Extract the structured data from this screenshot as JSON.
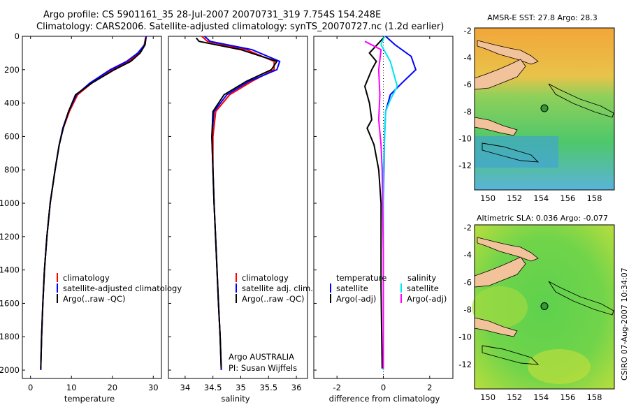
{
  "header": {
    "line1": "Argo profile: CS 5901161_35 28-Jul-2007 20070731_319 7.754S 154.248E",
    "line2": "Climatology: CARS2006. Satellite-adjusted climatology: synTS_20070727.nc (1.2d earlier)"
  },
  "footer": {
    "credit": "CSIRO 07-Aug-2007 10:34:07"
  },
  "colors": {
    "clim": "#ff0000",
    "sat": "#0000ff",
    "argo": "#000000",
    "sal_sat": "#00e5ee",
    "sal_argo": "#ff00ff",
    "mapmarker": "#339933"
  },
  "chart_data": [
    {
      "type": "line",
      "id": "temperature",
      "xlabel": "temperature",
      "ylabel": "",
      "xlim": [
        -2,
        32
      ],
      "ylim": [
        2050,
        0
      ],
      "xticks": [
        0,
        10,
        20,
        30
      ],
      "yticks": [
        0,
        200,
        400,
        600,
        800,
        1000,
        1200,
        1400,
        1600,
        1800,
        2000
      ],
      "series": [
        {
          "name": "climatology",
          "color": "#ff0000",
          "x": [
            28.2,
            27.8,
            26.5,
            24,
            20,
            15,
            11.5,
            9.5,
            8,
            7,
            6,
            4.8,
            4,
            3.4,
            3.0,
            2.7,
            2.5
          ],
          "y": [
            0,
            50,
            100,
            150,
            200,
            280,
            350,
            450,
            550,
            650,
            800,
            1000,
            1200,
            1400,
            1600,
            1800,
            2000
          ]
        },
        {
          "name": "satellite-adjusted climatology",
          "color": "#0000ff",
          "x": [
            28.3,
            27.9,
            26.2,
            23.5,
            19.5,
            14.5,
            11.2,
            9.3,
            7.9,
            7,
            6,
            4.8,
            4,
            3.4,
            3.0,
            2.7,
            2.5
          ],
          "y": [
            0,
            50,
            100,
            150,
            200,
            280,
            350,
            450,
            550,
            650,
            800,
            1000,
            1200,
            1400,
            1600,
            1800,
            2000
          ]
        },
        {
          "name": "Argo(..raw -QC)",
          "color": "#000000",
          "x": [
            28.2,
            28.0,
            26.8,
            24.5,
            20.5,
            15,
            11,
            9.3,
            8,
            7,
            6,
            4.8,
            4,
            3.4,
            3.0,
            2.7,
            2.5
          ],
          "y": [
            10,
            50,
            100,
            150,
            200,
            280,
            350,
            450,
            550,
            650,
            800,
            1000,
            1200,
            1400,
            1600,
            1800,
            1990
          ]
        }
      ],
      "legend": [
        "climatology",
        "satellite-adjusted climatology",
        "Argo(..raw -QC)"
      ]
    },
    {
      "type": "line",
      "id": "salinity",
      "xlabel": "salinity",
      "xlim": [
        33.7,
        36.2
      ],
      "ylim": [
        2050,
        0
      ],
      "xticks": [
        34,
        34.5,
        35,
        35.5,
        36
      ],
      "xticklabels": [
        "34",
        "34.5",
        "35",
        "35.5",
        "36"
      ],
      "series": [
        {
          "name": "climatology",
          "color": "#ff0000",
          "x": [
            34.3,
            34.4,
            35.1,
            35.6,
            35.6,
            35.2,
            34.8,
            34.55,
            34.5,
            34.5,
            34.52,
            34.56,
            34.6,
            34.63,
            34.65
          ],
          "y": [
            0,
            30,
            80,
            150,
            200,
            270,
            350,
            450,
            600,
            800,
            1000,
            1300,
            1600,
            1800,
            2000
          ]
        },
        {
          "name": "satellite adj. clim.",
          "color": "#0000ff",
          "x": [
            34.35,
            34.45,
            35.2,
            35.7,
            35.65,
            35.15,
            34.75,
            34.52,
            34.48,
            34.5,
            34.52,
            34.56,
            34.6,
            34.63,
            34.65
          ],
          "y": [
            0,
            30,
            80,
            150,
            200,
            270,
            350,
            450,
            600,
            800,
            1000,
            1300,
            1600,
            1800,
            2000
          ]
        },
        {
          "name": "Argo(..raw -QC)",
          "color": "#000000",
          "x": [
            34.2,
            34.25,
            35.0,
            35.65,
            35.55,
            35.1,
            34.7,
            34.5,
            34.48,
            34.5,
            34.52,
            34.56,
            34.6,
            34.63,
            34.65
          ],
          "y": [
            10,
            30,
            80,
            150,
            200,
            270,
            350,
            450,
            600,
            800,
            1000,
            1300,
            1600,
            1800,
            1990
          ]
        }
      ],
      "legend": [
        "climatology",
        "satellite adj. clim.",
        "Argo(..raw -QC)"
      ],
      "annotation": [
        "Argo AUSTRALIA",
        "PI: Susan Wijffels"
      ]
    },
    {
      "type": "line",
      "id": "difference",
      "xlabel": "difference from climatology",
      "xlim": [
        -3,
        3
      ],
      "ylim": [
        2050,
        0
      ],
      "xticks": [
        -2,
        0,
        2
      ],
      "series": [
        {
          "name": "temperature satellite",
          "color": "#0000ff",
          "x": [
            0.1,
            0.5,
            1.2,
            1.4,
            0.8,
            0.3,
            0.1,
            0.05,
            0.02,
            0,
            0,
            0
          ],
          "y": [
            0,
            50,
            120,
            200,
            280,
            350,
            450,
            600,
            800,
            1000,
            1500,
            2000
          ]
        },
        {
          "name": "temperature Argo(-adj)",
          "color": "#000000",
          "x": [
            0,
            -0.6,
            -0.3,
            -0.5,
            -0.8,
            -0.6,
            -0.5,
            -0.7,
            -0.4,
            -0.2,
            -0.1,
            -0.1,
            -0.05
          ],
          "y": [
            10,
            100,
            150,
            200,
            300,
            400,
            500,
            550,
            650,
            800,
            1000,
            1500,
            1990
          ]
        },
        {
          "name": "salinity satellite",
          "color": "#00e5ee",
          "x": [
            0.05,
            -0.1,
            0.3,
            0.6,
            0.3,
            0.1,
            0,
            0,
            0
          ],
          "y": [
            0,
            50,
            150,
            300,
            380,
            450,
            800,
            1300,
            2000
          ]
        },
        {
          "name": "salinity Argo(-adj)",
          "color": "#ff00ff",
          "x": [
            -0.8,
            -0.1,
            -0.2,
            -0.15,
            -0.2,
            -0.1,
            -0.05,
            0,
            0
          ],
          "y": [
            30,
            80,
            200,
            350,
            500,
            650,
            800,
            1300,
            1990
          ]
        }
      ],
      "legend_headers": [
        "temperature",
        "salinity"
      ],
      "legend": [
        "satellite",
        "Argo(-adj)",
        "satellite",
        "Argo(-adj)"
      ]
    },
    {
      "type": "heatmap",
      "id": "sst-map",
      "title": "AMSR-E SST: 27.8 Argo: 28.3",
      "xlim": [
        149,
        159.5
      ],
      "ylim": [
        -13.8,
        -1.8
      ],
      "xticks": [
        150,
        152,
        154,
        156,
        158
      ],
      "yticks": [
        -2,
        -4,
        -6,
        -8,
        -10,
        -12
      ],
      "marker": {
        "lon": 154.25,
        "lat": -7.75
      }
    },
    {
      "type": "heatmap",
      "id": "sla-map",
      "title": "Altimetric SLA: 0.036 Argo: -0.077",
      "xlim": [
        149,
        159.5
      ],
      "ylim": [
        -13.8,
        -1.8
      ],
      "xticks": [
        150,
        152,
        154,
        156,
        158
      ],
      "yticks": [
        -2,
        -4,
        -6,
        -8,
        -10,
        -12
      ],
      "marker": {
        "lon": 154.25,
        "lat": -7.75
      }
    }
  ]
}
